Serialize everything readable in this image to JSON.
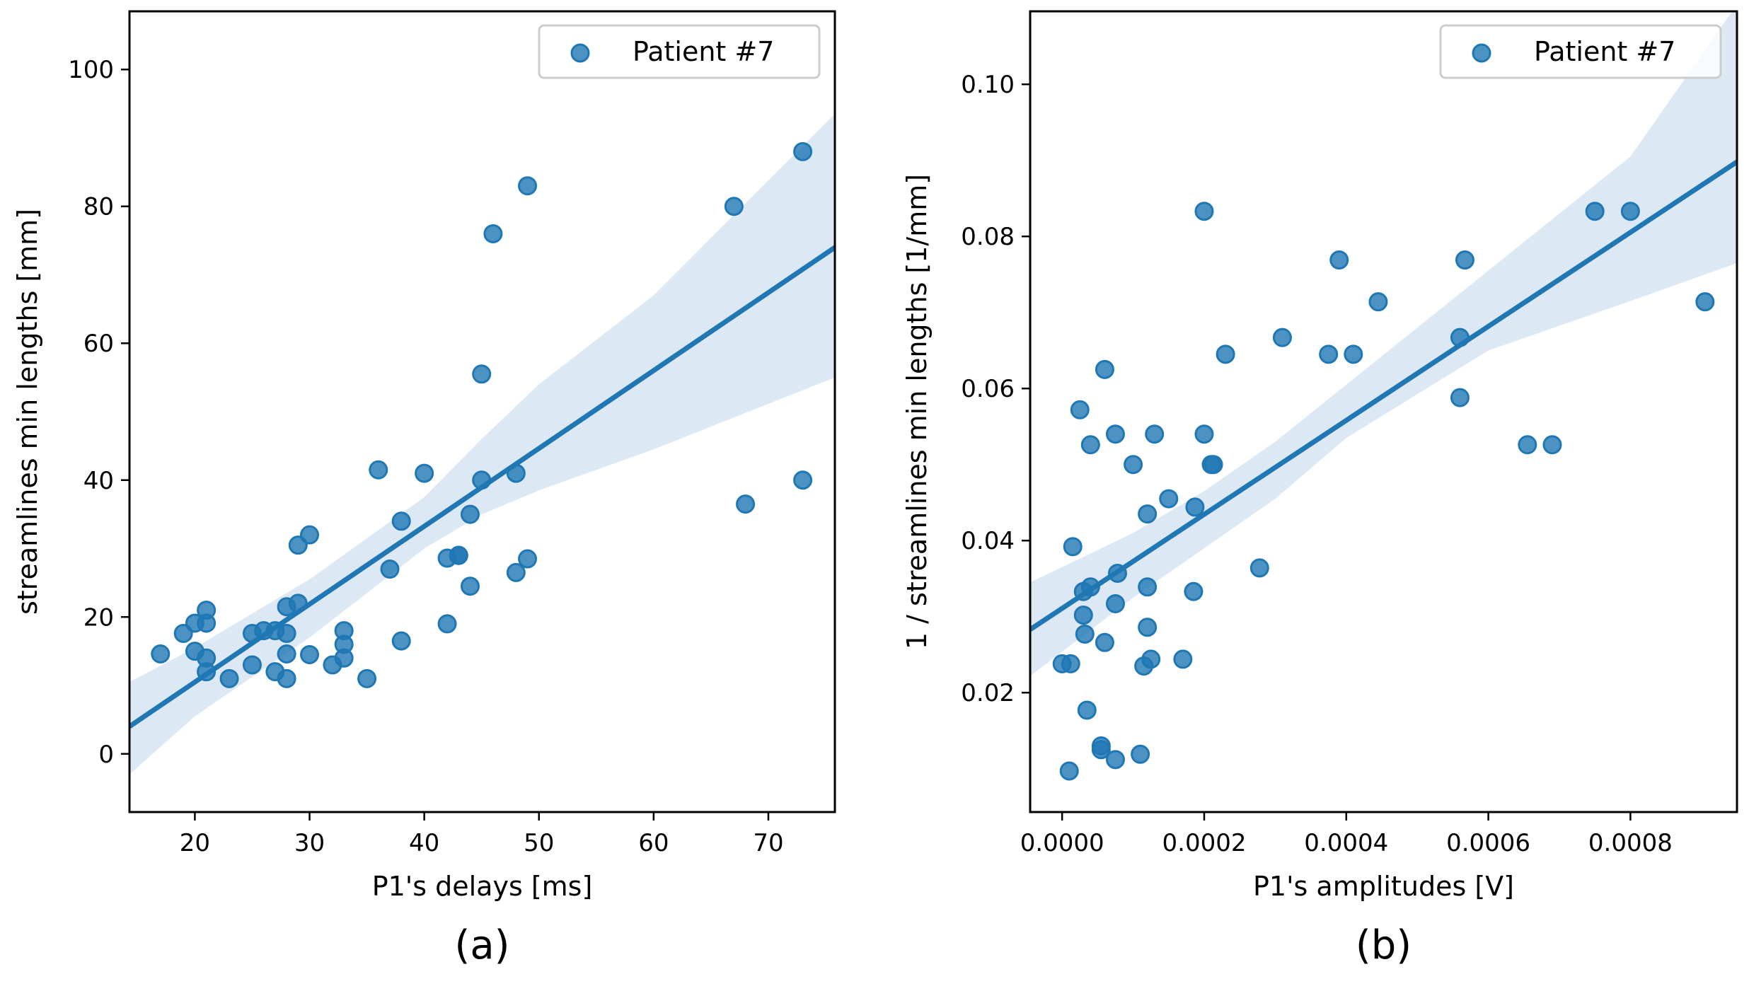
{
  "figure": {
    "panels": [
      "(a)",
      "(b)"
    ]
  },
  "colors": {
    "marker": "#1f77b4",
    "band": "#dce8f3",
    "line": "#1f77b4",
    "axis": "#000000",
    "legend_border": "#cccccc"
  },
  "chart_data": [
    {
      "type": "scatter",
      "panel_label": "(a)",
      "title": "",
      "xlabel": "P1's delays [ms]",
      "ylabel": "streamlines min lengths [mm]",
      "xlim": [
        14.3,
        75.8
      ],
      "ylim": [
        -8.5,
        108.5
      ],
      "xticks": [
        20,
        30,
        40,
        50,
        60,
        70
      ],
      "xtick_labels": [
        "20",
        "30",
        "40",
        "50",
        "60",
        "70"
      ],
      "yticks": [
        0,
        20,
        40,
        60,
        80,
        100
      ],
      "ytick_labels": [
        "0",
        "20",
        "40",
        "60",
        "80",
        "100"
      ],
      "grid": false,
      "legend": {
        "entries": [
          "Patient #7"
        ],
        "placement": "top-right"
      },
      "series": [
        {
          "name": "Patient #7",
          "points": [
            [
              17,
              14.6
            ],
            [
              19,
              17.6
            ],
            [
              20,
              19.1
            ],
            [
              20,
              15
            ],
            [
              21,
              21
            ],
            [
              21,
              19.1
            ],
            [
              21,
              14
            ],
            [
              21,
              12
            ],
            [
              23,
              11
            ],
            [
              25,
              17.6
            ],
            [
              25,
              13
            ],
            [
              26,
              18
            ],
            [
              27,
              18
            ],
            [
              27,
              12
            ],
            [
              28,
              21.5
            ],
            [
              28,
              17.6
            ],
            [
              28,
              14.6
            ],
            [
              28,
              11
            ],
            [
              29,
              30.5
            ],
            [
              29,
              22
            ],
            [
              30,
              32
            ],
            [
              30,
              14.5
            ],
            [
              32,
              13
            ],
            [
              33,
              18
            ],
            [
              33,
              16
            ],
            [
              33,
              14
            ],
            [
              35,
              11
            ],
            [
              36,
              41.5
            ],
            [
              37,
              27
            ],
            [
              38,
              34
            ],
            [
              38,
              16.5
            ],
            [
              40,
              41
            ],
            [
              42,
              28.6
            ],
            [
              42,
              19
            ],
            [
              43,
              29
            ],
            [
              43,
              29
            ],
            [
              44,
              35
            ],
            [
              44,
              24.5
            ],
            [
              45,
              55.5
            ],
            [
              45,
              40
            ],
            [
              46,
              76
            ],
            [
              48,
              41
            ],
            [
              48,
              26.5
            ],
            [
              49,
              83
            ],
            [
              49,
              28.5
            ],
            [
              67,
              80
            ],
            [
              68,
              36.5
            ],
            [
              73,
              88
            ],
            [
              73,
              40
            ]
          ]
        }
      ],
      "regression": {
        "line": [
          [
            14.3,
            4.0
          ],
          [
            75.8,
            74.0
          ]
        ],
        "ci_upper": [
          [
            14.3,
            10.5
          ],
          [
            20,
            15.5
          ],
          [
            30,
            25.5
          ],
          [
            40,
            37.5
          ],
          [
            45,
            46
          ],
          [
            50,
            54
          ],
          [
            60,
            67
          ],
          [
            75.8,
            93.5
          ]
        ],
        "ci_lower": [
          [
            14.3,
            -3.0
          ],
          [
            20,
            5.5
          ],
          [
            30,
            17
          ],
          [
            40,
            30
          ],
          [
            45,
            35
          ],
          [
            50,
            38.5
          ],
          [
            60,
            44.5
          ],
          [
            75.8,
            55.0
          ]
        ]
      }
    },
    {
      "type": "scatter",
      "panel_label": "(b)",
      "title": "",
      "xlabel": "P1's amplitudes [V]",
      "ylabel": "1 / streamlines min lengths [1/mm]",
      "xlim": [
        -4.5e-05,
        0.00095
      ],
      "ylim": [
        0.0043,
        0.1096
      ],
      "xticks": [
        0.0,
        0.0002,
        0.0004,
        0.0006,
        0.0008
      ],
      "xtick_labels": [
        "0.0000",
        "0.0002",
        "0.0004",
        "0.0006",
        "0.0008"
      ],
      "yticks": [
        0.02,
        0.04,
        0.06,
        0.08,
        0.1
      ],
      "ytick_labels": [
        "0.02",
        "0.04",
        "0.06",
        "0.08",
        "0.10"
      ],
      "grid": false,
      "legend": {
        "entries": [
          "Patient #7"
        ],
        "placement": "top-right"
      },
      "series": [
        {
          "name": "Patient #7",
          "points": [
            [
              0.0,
              0.0238
            ],
            [
              1e-05,
              0.0097
            ],
            [
              1.2e-05,
              0.0238
            ],
            [
              1.5e-05,
              0.0392
            ],
            [
              2.5e-05,
              0.0572
            ],
            [
              3e-05,
              0.0302
            ],
            [
              3e-05,
              0.0333
            ],
            [
              3.2e-05,
              0.0277
            ],
            [
              3.5e-05,
              0.0177
            ],
            [
              4e-05,
              0.0526
            ],
            [
              4e-05,
              0.0339
            ],
            [
              5.5e-05,
              0.0125
            ],
            [
              5.5e-05,
              0.013
            ],
            [
              6e-05,
              0.0625
            ],
            [
              6e-05,
              0.0266
            ],
            [
              7.5e-05,
              0.054
            ],
            [
              7.5e-05,
              0.0317
            ],
            [
              7.5e-05,
              0.0112
            ],
            [
              7.8e-05,
              0.0357
            ],
            [
              0.0001,
              0.05
            ],
            [
              0.00011,
              0.0119
            ],
            [
              0.000115,
              0.0235
            ],
            [
              0.00012,
              0.0286
            ],
            [
              0.00012,
              0.0435
            ],
            [
              0.00012,
              0.0339
            ],
            [
              0.000125,
              0.0244
            ],
            [
              0.00013,
              0.054
            ],
            [
              0.00015,
              0.0455
            ],
            [
              0.00017,
              0.0244
            ],
            [
              0.000185,
              0.0333
            ],
            [
              0.000187,
              0.0444
            ],
            [
              0.0002,
              0.0833
            ],
            [
              0.0002,
              0.054
            ],
            [
              0.00021,
              0.05
            ],
            [
              0.000213,
              0.05
            ],
            [
              0.00023,
              0.0645
            ],
            [
              0.000278,
              0.0364
            ],
            [
              0.00031,
              0.0667
            ],
            [
              0.000375,
              0.0645
            ],
            [
              0.00039,
              0.0769
            ],
            [
              0.00041,
              0.0645
            ],
            [
              0.000445,
              0.0714
            ],
            [
              0.00056,
              0.0667
            ],
            [
              0.00056,
              0.0588
            ],
            [
              0.000567,
              0.0769
            ],
            [
              0.000655,
              0.0526
            ],
            [
              0.00069,
              0.0526
            ],
            [
              0.00075,
              0.0833
            ],
            [
              0.0008,
              0.0833
            ],
            [
              0.000905,
              0.0714
            ]
          ]
        }
      ],
      "regression": {
        "line": [
          [
            -4.5e-05,
            0.0283
          ],
          [
            0.00095,
            0.0898
          ]
        ],
        "ci_upper": [
          [
            -4.5e-05,
            0.0345
          ],
          [
            0.0001,
            0.041
          ],
          [
            0.0002,
            0.0465
          ],
          [
            0.0003,
            0.053
          ],
          [
            0.0004,
            0.0605
          ],
          [
            0.0006,
            0.0755
          ],
          [
            0.0008,
            0.0905
          ],
          [
            0.00095,
            0.1105
          ]
        ],
        "ci_lower": [
          [
            -4.5e-05,
            0.0222
          ],
          [
            0.0001,
            0.0325
          ],
          [
            0.0002,
            0.039
          ],
          [
            0.0003,
            0.0455
          ],
          [
            0.0004,
            0.0535
          ],
          [
            0.0006,
            0.065
          ],
          [
            0.0008,
            0.0715
          ],
          [
            0.00095,
            0.0765
          ]
        ]
      }
    }
  ]
}
